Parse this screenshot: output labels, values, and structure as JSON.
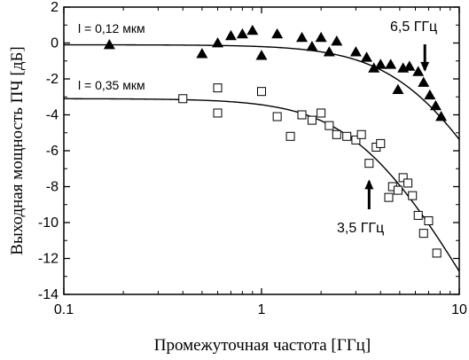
{
  "chart_data": {
    "type": "scatter",
    "title": "",
    "xlabel": "Промежуточная частота [ГГц]",
    "ylabel": "Выходная мощность ПЧ [дБ]",
    "x_scale": "log",
    "xlim": [
      0.1,
      10
    ],
    "ylim": [
      -14,
      2
    ],
    "x_ticks": [
      "0.1",
      "1",
      "10"
    ],
    "y_ticks": [
      "2",
      "0",
      "-2",
      "-4",
      "-6",
      "-8",
      "-10",
      "-12",
      "-14"
    ],
    "grid": false,
    "series": [
      {
        "marker": "filled-triangle",
        "label": "l = 0,12 мкм",
        "points": [
          [
            0.17,
            -0.1
          ],
          [
            0.5,
            -0.6
          ],
          [
            0.6,
            0.0
          ],
          [
            0.7,
            0.4
          ],
          [
            0.8,
            0.5
          ],
          [
            0.9,
            0.7
          ],
          [
            1.0,
            -0.7
          ],
          [
            1.2,
            0.5
          ],
          [
            1.6,
            0.3
          ],
          [
            1.8,
            -0.2
          ],
          [
            2.0,
            0.3
          ],
          [
            2.2,
            -0.5
          ],
          [
            2.4,
            0.1
          ],
          [
            3.0,
            -0.5
          ],
          [
            3.4,
            -0.8
          ],
          [
            3.7,
            -1.4
          ],
          [
            4.0,
            -1.2
          ],
          [
            4.5,
            -1.2
          ],
          [
            4.9,
            -2.6
          ],
          [
            5.2,
            -1.4
          ],
          [
            5.6,
            -1.3
          ],
          [
            6.2,
            -1.6
          ],
          [
            6.6,
            -2.2
          ],
          [
            7.1,
            -2.9
          ],
          [
            7.6,
            -3.5
          ],
          [
            8.1,
            -4.1
          ]
        ]
      },
      {
        "marker": "open-square",
        "label": "l = 0,35 мкм",
        "points": [
          [
            0.4,
            -3.1
          ],
          [
            0.6,
            -2.5
          ],
          [
            1.0,
            -2.7
          ],
          [
            0.6,
            -3.9
          ],
          [
            1.2,
            -4.1
          ],
          [
            1.4,
            -5.2
          ],
          [
            1.6,
            -4.0
          ],
          [
            1.8,
            -4.3
          ],
          [
            2.0,
            -3.9
          ],
          [
            2.2,
            -4.6
          ],
          [
            2.4,
            -5.1
          ],
          [
            2.7,
            -5.2
          ],
          [
            3.0,
            -5.4
          ],
          [
            3.2,
            -5.1
          ],
          [
            3.5,
            -6.7
          ],
          [
            3.8,
            -5.8
          ],
          [
            4.0,
            -5.6
          ],
          [
            4.4,
            -8.6
          ],
          [
            4.6,
            -8.0
          ],
          [
            4.9,
            -8.2
          ],
          [
            5.2,
            -7.5
          ],
          [
            5.5,
            -7.8
          ],
          [
            5.8,
            -8.5
          ],
          [
            6.2,
            -9.6
          ],
          [
            6.6,
            -10.6
          ],
          [
            7.0,
            -9.9
          ],
          [
            7.7,
            -11.7
          ]
        ]
      }
    ],
    "fit_curves": [
      {
        "plateau": -0.1,
        "f3dB": 6.5
      },
      {
        "plateau": -3.1,
        "f3dB": 3.5
      }
    ],
    "annotations": [
      {
        "text": "6,5 ГГц",
        "arrow_to": [
          6.7,
          -1.5
        ]
      },
      {
        "text": "3,5 ГГц",
        "arrow_to": [
          3.5,
          -7.7
        ]
      }
    ]
  }
}
